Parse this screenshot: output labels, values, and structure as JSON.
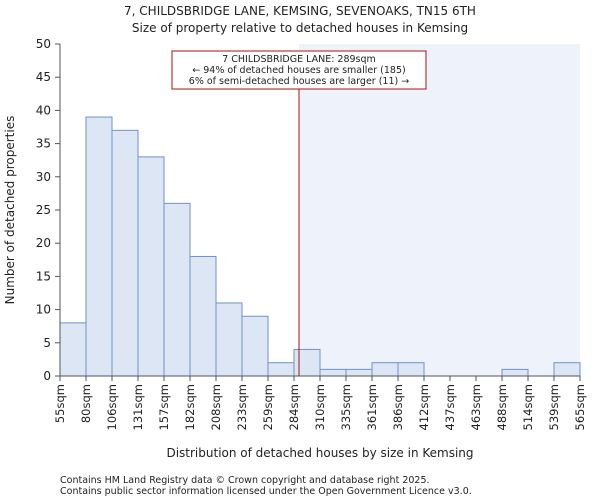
{
  "chart_data": {
    "type": "bar",
    "title": "7, CHILDSBRIDGE LANE, KEMSING, SEVENOAKS, TN15 6TH",
    "subtitle": "Size of property relative to detached houses in Kemsing",
    "xlabel": "Distribution of detached houses by size in Kemsing",
    "ylabel": "Number of detached properties",
    "ylim": [
      0,
      50
    ],
    "yticks": [
      0,
      5,
      10,
      15,
      20,
      25,
      30,
      35,
      40,
      45,
      50
    ],
    "bin_edges": [
      55,
      80,
      106,
      131,
      157,
      182,
      208,
      233,
      259,
      284,
      310,
      335,
      361,
      386,
      412,
      437,
      463,
      488,
      514,
      539,
      565
    ],
    "x_tick_labels": [
      "55sqm",
      "80sqm",
      "106sqm",
      "131sqm",
      "157sqm",
      "182sqm",
      "208sqm",
      "233sqm",
      "259sqm",
      "284sqm",
      "310sqm",
      "335sqm",
      "361sqm",
      "386sqm",
      "412sqm",
      "437sqm",
      "463sqm",
      "488sqm",
      "514sqm",
      "539sqm",
      "565sqm"
    ],
    "values": [
      8,
      39,
      37,
      33,
      26,
      18,
      11,
      9,
      2,
      4,
      1,
      1,
      2,
      2,
      0,
      0,
      0,
      1,
      0,
      2
    ],
    "marker_value": 289,
    "annotation": {
      "line1": "7 CHILDSBRIDGE LANE: 289sqm",
      "line2": "← 94% of detached houses are smaller (185)",
      "line3": "6% of semi-detached houses are larger (11) →"
    },
    "colors": {
      "bar_fill": "#dce6f5",
      "bar_stroke": "#6f93c8",
      "highlight_fill": "#eef3fb",
      "marker": "#aa1111",
      "axis": "#555555"
    }
  },
  "footer": {
    "line1": "Contains HM Land Registry data © Crown copyright and database right 2025.",
    "line2": "Contains public sector information licensed under the Open Government Licence v3.0."
  }
}
